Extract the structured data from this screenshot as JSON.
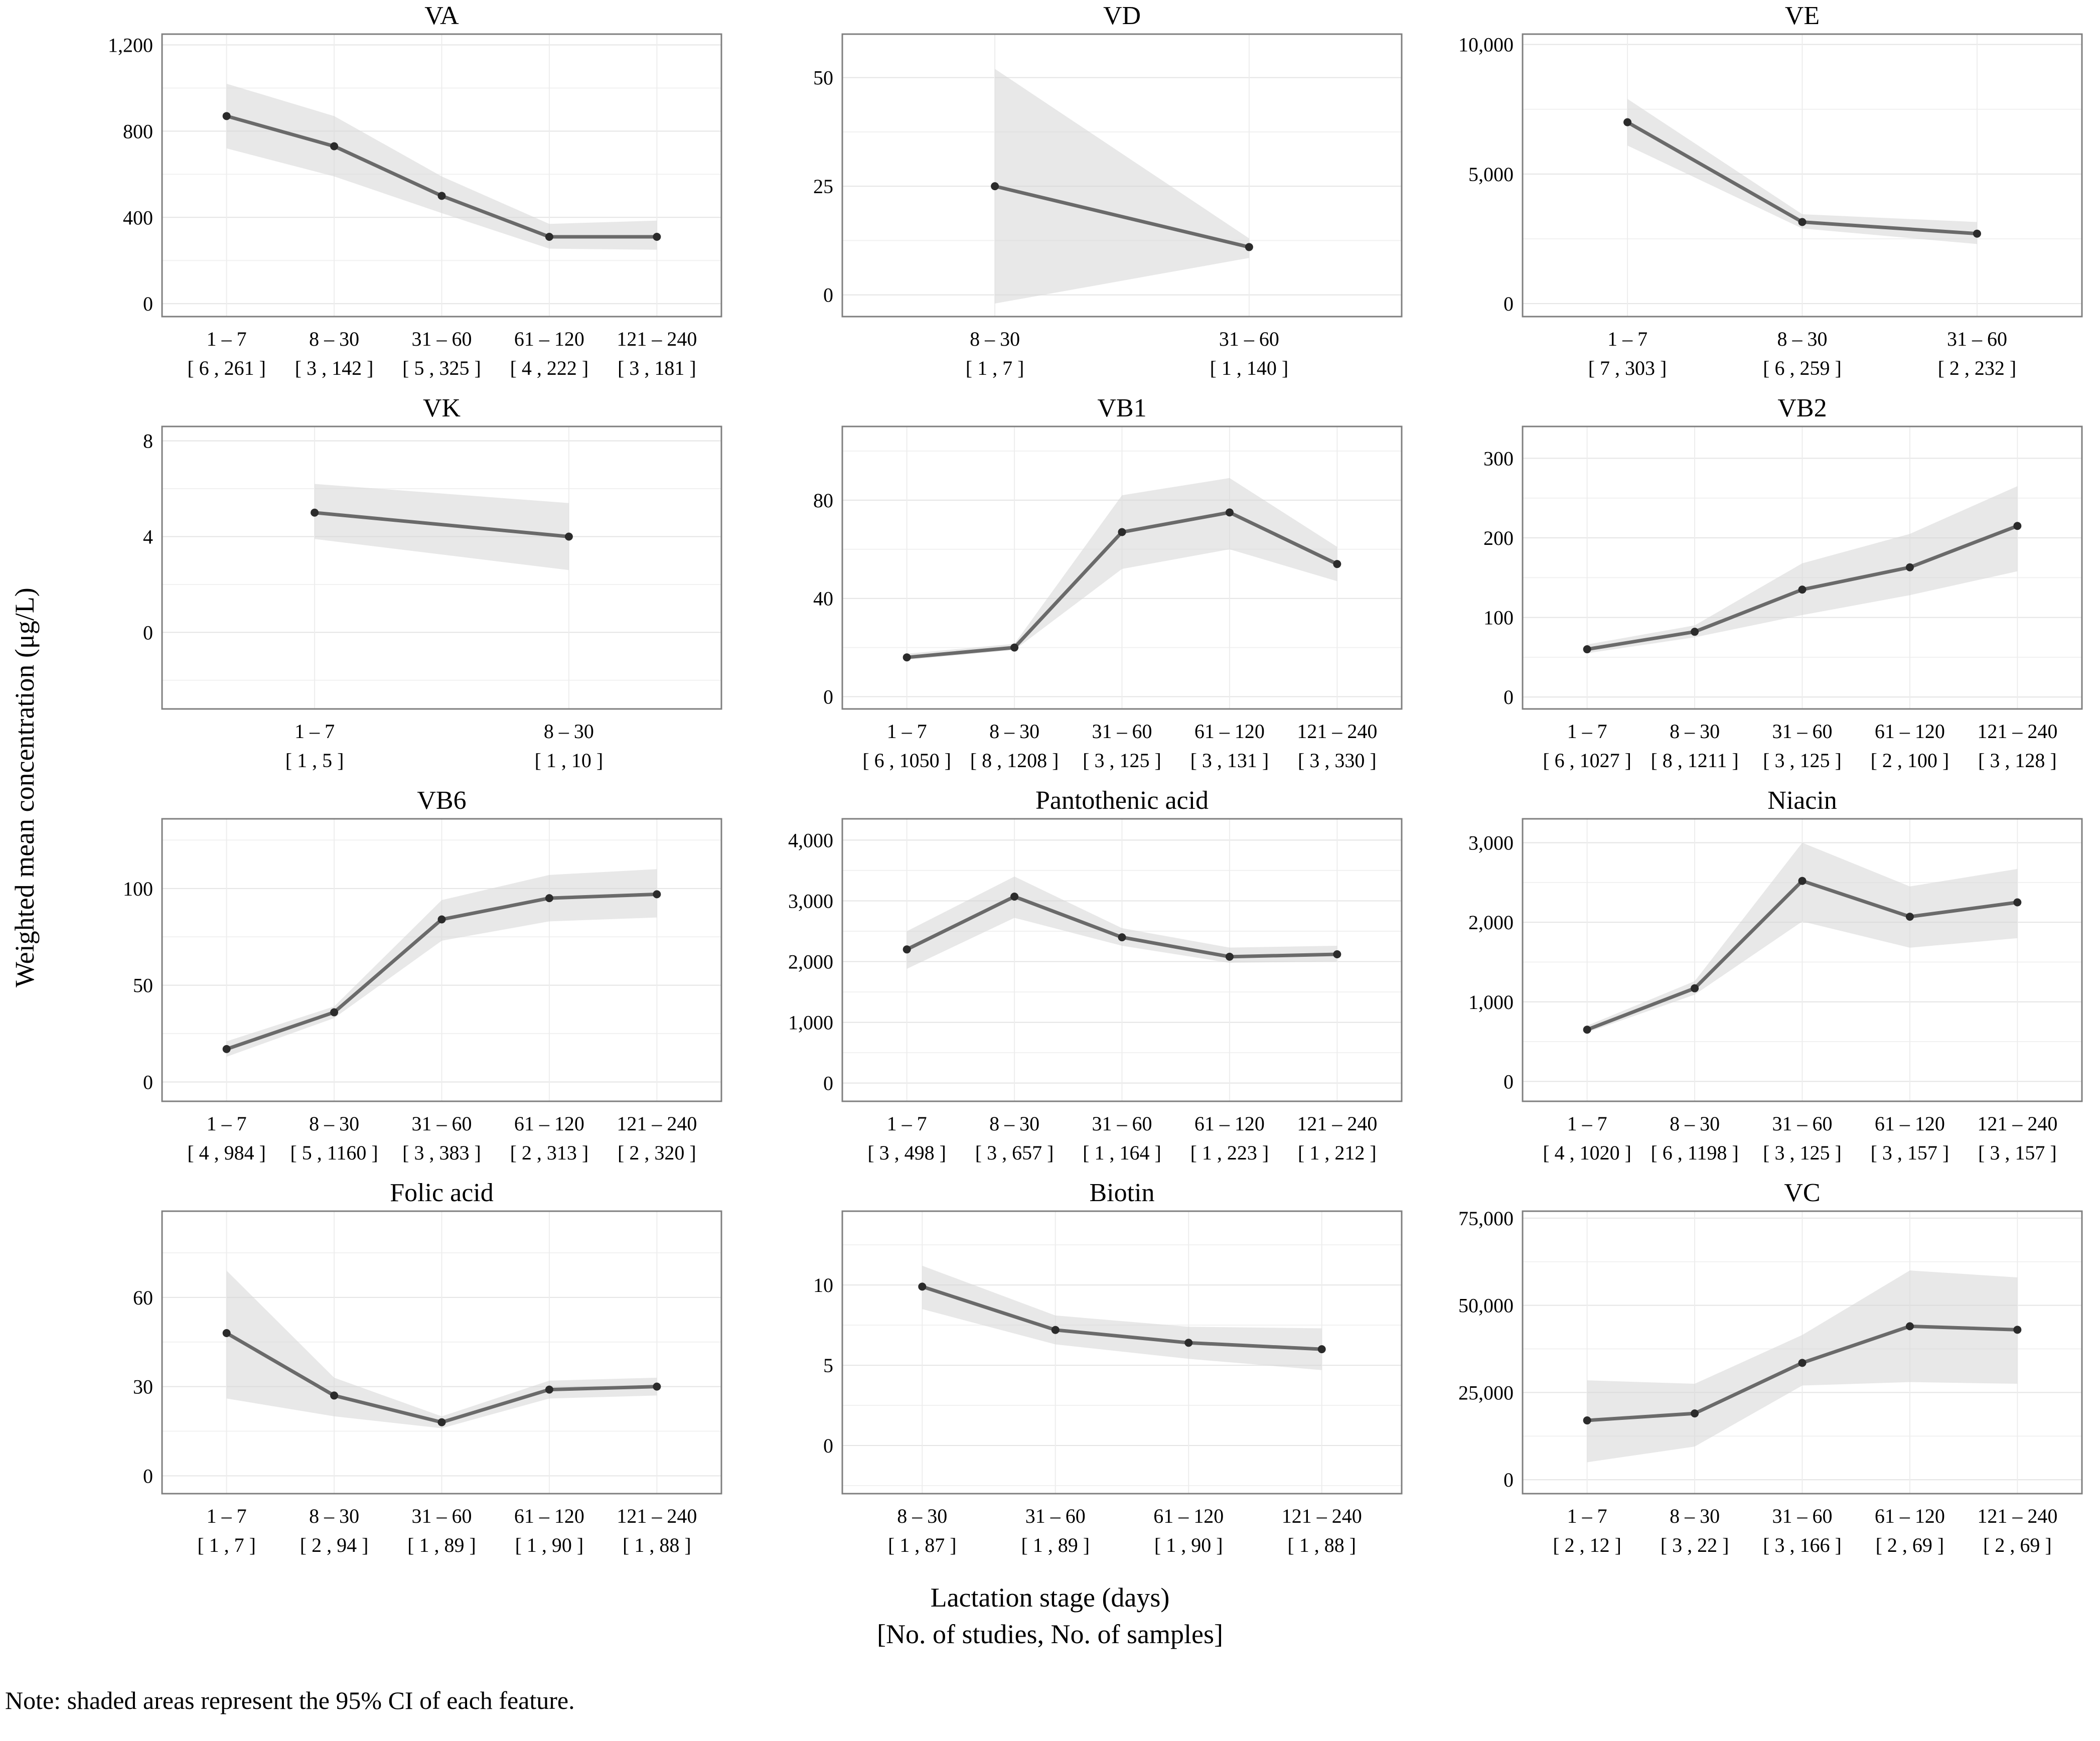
{
  "labels": {
    "ylabel": "Weighted mean concentration (μg/L)",
    "xlabel_line1": "Lactation stage (days)",
    "xlabel_line2": "[No. of studies, No. of samples]",
    "note": "Note: shaded areas represent the 95% CI of each feature."
  },
  "colors": {
    "band": "#d6d6d6",
    "line": "#6a6a6a",
    "point": "#2b2b2b",
    "grid_major": "#e4e4e4",
    "grid_minor": "#f1f1f1",
    "grid_vertical": "#ededed",
    "border": "#7f7f7f",
    "text": "#000000"
  },
  "chart_data": [
    {
      "type": "line",
      "title": "VA",
      "categories": [
        "1 – 7",
        "8 – 30",
        "31 – 60",
        "61 – 120",
        "121 – 240"
      ],
      "sample_labels": [
        "[ 6 , 261 ]",
        "[ 3 , 142 ]",
        "[ 5 , 325 ]",
        "[ 4 , 222 ]",
        "[ 3 , 181 ]"
      ],
      "values": [
        870,
        730,
        500,
        310,
        310
      ],
      "ci_lower": [
        720,
        590,
        420,
        255,
        250
      ],
      "ci_upper": [
        1020,
        870,
        590,
        370,
        385
      ],
      "yticks": [
        0,
        400,
        800,
        1200
      ],
      "ytick_labels": [
        "0",
        "400",
        "800",
        "1,200"
      ],
      "ylim": [
        -60,
        1250
      ]
    },
    {
      "type": "line",
      "title": "VD",
      "categories": [
        "8 – 30",
        "31 – 60"
      ],
      "sample_labels": [
        "[ 1 , 7 ]",
        "[ 1 , 140 ]"
      ],
      "values": [
        25,
        11
      ],
      "ci_lower": [
        -2,
        8.5
      ],
      "ci_upper": [
        52,
        13
      ],
      "yticks": [
        0,
        25,
        50
      ],
      "ytick_labels": [
        "0",
        "25",
        "50"
      ],
      "ylim": [
        -5,
        60
      ]
    },
    {
      "type": "line",
      "title": "VE",
      "categories": [
        "1 – 7",
        "8 – 30",
        "31 – 60"
      ],
      "sample_labels": [
        "[ 7 , 303 ]",
        "[ 6 , 259 ]",
        "[ 2 , 232 ]"
      ],
      "values": [
        7000,
        3150,
        2700
      ],
      "ci_lower": [
        6100,
        2900,
        2300
      ],
      "ci_upper": [
        7900,
        3450,
        3150
      ],
      "yticks": [
        0,
        5000,
        10000
      ],
      "ytick_labels": [
        "0",
        "5,000",
        "10,000"
      ],
      "ylim": [
        -500,
        10400
      ]
    },
    {
      "type": "line",
      "title": "VK",
      "categories": [
        "1 – 7",
        "8 – 30"
      ],
      "sample_labels": [
        "[ 1 , 5 ]",
        "[ 1 , 10 ]"
      ],
      "values": [
        5,
        4
      ],
      "ci_lower": [
        3.9,
        2.6
      ],
      "ci_upper": [
        6.2,
        5.4
      ],
      "yticks": [
        0,
        4,
        8
      ],
      "ytick_labels": [
        "0",
        "4",
        "8"
      ],
      "ylim": [
        -3.2,
        8.6
      ]
    },
    {
      "type": "line",
      "title": "VB1",
      "categories": [
        "1 – 7",
        "8 – 30",
        "31 – 60",
        "61 – 120",
        "121 – 240"
      ],
      "sample_labels": [
        "[ 6 , 1050 ]",
        "[ 8 , 1208 ]",
        "[ 3 , 125 ]",
        "[ 3 , 131 ]",
        "[ 3 , 330 ]"
      ],
      "values": [
        16,
        20,
        67,
        75,
        54
      ],
      "ci_lower": [
        15,
        19,
        52,
        60,
        47
      ],
      "ci_upper": [
        17.5,
        21.5,
        82,
        89,
        61
      ],
      "yticks": [
        0,
        40,
        80
      ],
      "ytick_labels": [
        "0",
        "40",
        "80"
      ],
      "ylim": [
        -5,
        110
      ]
    },
    {
      "type": "line",
      "title": "VB2",
      "categories": [
        "1 – 7",
        "8 – 30",
        "31 – 60",
        "61 – 120",
        "121 – 240"
      ],
      "sample_labels": [
        "[ 6 , 1027 ]",
        "[ 8 , 1211 ]",
        "[ 3 , 125 ]",
        "[ 2 , 100 ]",
        "[ 3 , 128 ]"
      ],
      "values": [
        60,
        82,
        135,
        163,
        215
      ],
      "ci_lower": [
        55,
        75,
        103,
        128,
        158
      ],
      "ci_upper": [
        66,
        90,
        168,
        205,
        265
      ],
      "yticks": [
        0,
        100,
        200,
        300
      ],
      "ytick_labels": [
        "0",
        "100",
        "200",
        "300"
      ],
      "ylim": [
        -15,
        340
      ]
    },
    {
      "type": "line",
      "title": "VB6",
      "categories": [
        "1 – 7",
        "8 – 30",
        "31 – 60",
        "61 – 120",
        "121 – 240"
      ],
      "sample_labels": [
        "[ 4 , 984 ]",
        "[ 5 , 1160 ]",
        "[ 3 , 383 ]",
        "[ 2 , 313 ]",
        "[ 2 , 320 ]"
      ],
      "values": [
        17,
        36,
        84,
        95,
        97
      ],
      "ci_lower": [
        13,
        33,
        73,
        83,
        85
      ],
      "ci_upper": [
        21,
        39,
        94,
        107,
        110
      ],
      "yticks": [
        0,
        50,
        100
      ],
      "ytick_labels": [
        "0",
        "50",
        "100"
      ],
      "ylim": [
        -10,
        136
      ]
    },
    {
      "type": "line",
      "title": "Pantothenic acid",
      "categories": [
        "1 – 7",
        "8 – 30",
        "31 – 60",
        "61 – 120",
        "121 – 240"
      ],
      "sample_labels": [
        "[ 3 , 498 ]",
        "[ 3 , 657 ]",
        "[ 1 , 164 ]",
        "[ 1 , 223 ]",
        "[ 1 , 212 ]"
      ],
      "values": [
        2200,
        3070,
        2400,
        2080,
        2120
      ],
      "ci_lower": [
        1880,
        2720,
        2260,
        1980,
        2000
      ],
      "ci_upper": [
        2500,
        3400,
        2550,
        2230,
        2260
      ],
      "yticks": [
        0,
        1000,
        2000,
        3000,
        4000
      ],
      "ytick_labels": [
        "0",
        "1,000",
        "2,000",
        "3,000",
        "4,000"
      ],
      "ylim": [
        -300,
        4350
      ]
    },
    {
      "type": "line",
      "title": "Niacin",
      "categories": [
        "1 – 7",
        "8 – 30",
        "31 – 60",
        "61 – 120",
        "121 – 240"
      ],
      "sample_labels": [
        "[ 4 , 1020 ]",
        "[ 6 , 1198 ]",
        "[ 3 , 125 ]",
        "[ 3 , 157 ]",
        "[ 3 , 157 ]"
      ],
      "values": [
        650,
        1170,
        2520,
        2070,
        2250
      ],
      "ci_lower": [
        615,
        1090,
        2010,
        1680,
        1800
      ],
      "ci_upper": [
        700,
        1260,
        3000,
        2450,
        2670
      ],
      "yticks": [
        0,
        1000,
        2000,
        3000
      ],
      "ytick_labels": [
        "0",
        "1,000",
        "2,000",
        "3,000"
      ],
      "ylim": [
        -250,
        3300
      ]
    },
    {
      "type": "line",
      "title": "Folic acid",
      "categories": [
        "1 – 7",
        "8 – 30",
        "31 – 60",
        "61 – 120",
        "121 – 240"
      ],
      "sample_labels": [
        "[ 1 , 7 ]",
        "[ 2 , 94 ]",
        "[ 1 , 89 ]",
        "[ 1 , 90 ]",
        "[ 1 , 88 ]"
      ],
      "values": [
        48,
        27,
        18,
        29,
        30
      ],
      "ci_lower": [
        26,
        20,
        16,
        26,
        27
      ],
      "ci_upper": [
        69,
        33,
        20,
        32,
        33
      ],
      "yticks": [
        0,
        30,
        60
      ],
      "ytick_labels": [
        "0",
        "30",
        "60"
      ],
      "ylim": [
        -6,
        89
      ]
    },
    {
      "type": "line",
      "title": "Biotin",
      "categories": [
        "8 – 30",
        "31 – 60",
        "61 – 120",
        "121 – 240"
      ],
      "sample_labels": [
        "[ 1 , 87 ]",
        "[ 1 , 89 ]",
        "[ 1 , 90 ]",
        "[ 1 , 88 ]"
      ],
      "values": [
        9.9,
        7.2,
        6.4,
        6.0
      ],
      "ci_lower": [
        8.5,
        6.3,
        5.4,
        4.7
      ],
      "ci_upper": [
        11.2,
        8.1,
        7.4,
        7.3
      ],
      "yticks": [
        0,
        5,
        10
      ],
      "ytick_labels": [
        "0",
        "5",
        "10"
      ],
      "ylim": [
        -3,
        14.6
      ]
    },
    {
      "type": "line",
      "title": "VC",
      "categories": [
        "1 – 7",
        "8 – 30",
        "31 – 60",
        "61 – 120",
        "121 – 240"
      ],
      "sample_labels": [
        "[ 2 , 12 ]",
        "[ 3 , 22 ]",
        "[ 3 , 166 ]",
        "[ 2 , 69 ]",
        "[ 2 , 69 ]"
      ],
      "values": [
        17000,
        19000,
        33500,
        44000,
        43000
      ],
      "ci_lower": [
        5000,
        9500,
        27000,
        28000,
        27500
      ],
      "ci_upper": [
        28500,
        27500,
        41500,
        60000,
        58000
      ],
      "yticks": [
        0,
        25000,
        50000,
        75000
      ],
      "ytick_labels": [
        "0",
        "25,000",
        "50,000",
        "75,000"
      ],
      "ylim": [
        -4000,
        77000
      ]
    }
  ]
}
